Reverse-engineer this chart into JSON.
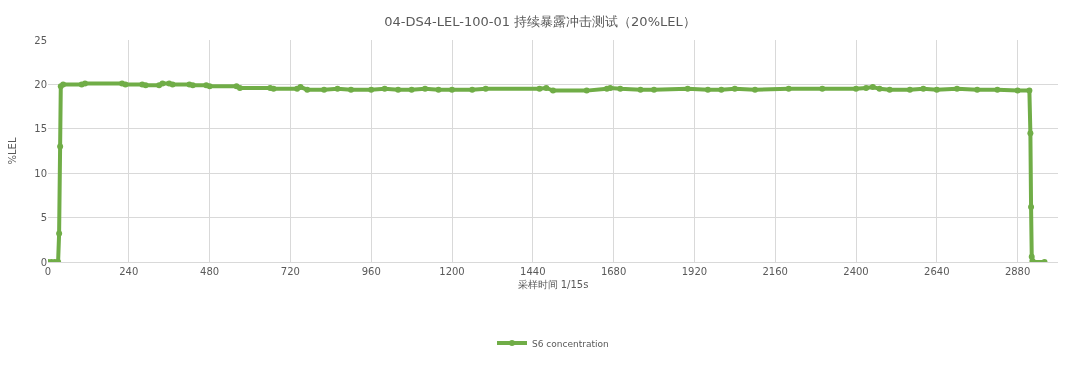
{
  "chart_data": {
    "type": "line",
    "title": "04-DS4-LEL-100-01 持续暴露冲击测试（20%LEL）",
    "xlabel": "采样时间 1/15s",
    "ylabel": "%LEL",
    "xlim": [
      0,
      3000
    ],
    "xticks": [
      0,
      240,
      480,
      720,
      960,
      1200,
      1440,
      1680,
      1920,
      2160,
      2400,
      2640,
      2880
    ],
    "ylim": [
      0,
      25
    ],
    "yticks": [
      0,
      5,
      10,
      15,
      20,
      25
    ],
    "grid": true,
    "legend": "bottom",
    "marker": "circle",
    "line_style": "solid",
    "series": [
      {
        "name": "S6 concentration",
        "color": "#70ad47",
        "x": [
          0,
          10,
          20,
          30,
          33,
          36,
          38,
          45,
          100,
          110,
          220,
          230,
          280,
          290,
          330,
          340,
          360,
          370,
          420,
          430,
          470,
          480,
          560,
          570,
          660,
          670,
          740,
          750,
          770,
          820,
          860,
          900,
          960,
          1000,
          1040,
          1080,
          1120,
          1160,
          1200,
          1260,
          1300,
          1460,
          1480,
          1500,
          1600,
          1660,
          1670,
          1700,
          1760,
          1800,
          1900,
          1960,
          2000,
          2040,
          2100,
          2200,
          2300,
          2400,
          2430,
          2450,
          2470,
          2500,
          2560,
          2600,
          2640,
          2700,
          2760,
          2820,
          2880,
          2915,
          2918,
          2920,
          2922,
          2924,
          2926,
          2960
        ],
        "values": [
          0,
          0,
          0,
          0,
          3.2,
          13,
          19.8,
          20.0,
          20.0,
          20.1,
          20.1,
          20.0,
          20.0,
          19.9,
          19.9,
          20.1,
          20.1,
          20.0,
          20.0,
          19.9,
          19.9,
          19.8,
          19.8,
          19.6,
          19.6,
          19.5,
          19.5,
          19.7,
          19.4,
          19.4,
          19.5,
          19.4,
          19.4,
          19.5,
          19.4,
          19.4,
          19.5,
          19.4,
          19.4,
          19.4,
          19.5,
          19.5,
          19.6,
          19.3,
          19.3,
          19.5,
          19.6,
          19.5,
          19.4,
          19.4,
          19.5,
          19.4,
          19.4,
          19.5,
          19.4,
          19.5,
          19.5,
          19.5,
          19.6,
          19.7,
          19.5,
          19.4,
          19.4,
          19.5,
          19.4,
          19.5,
          19.4,
          19.4,
          19.3,
          19.3,
          14.5,
          6.2,
          0.6,
          0.1,
          0,
          0
        ]
      }
    ]
  }
}
